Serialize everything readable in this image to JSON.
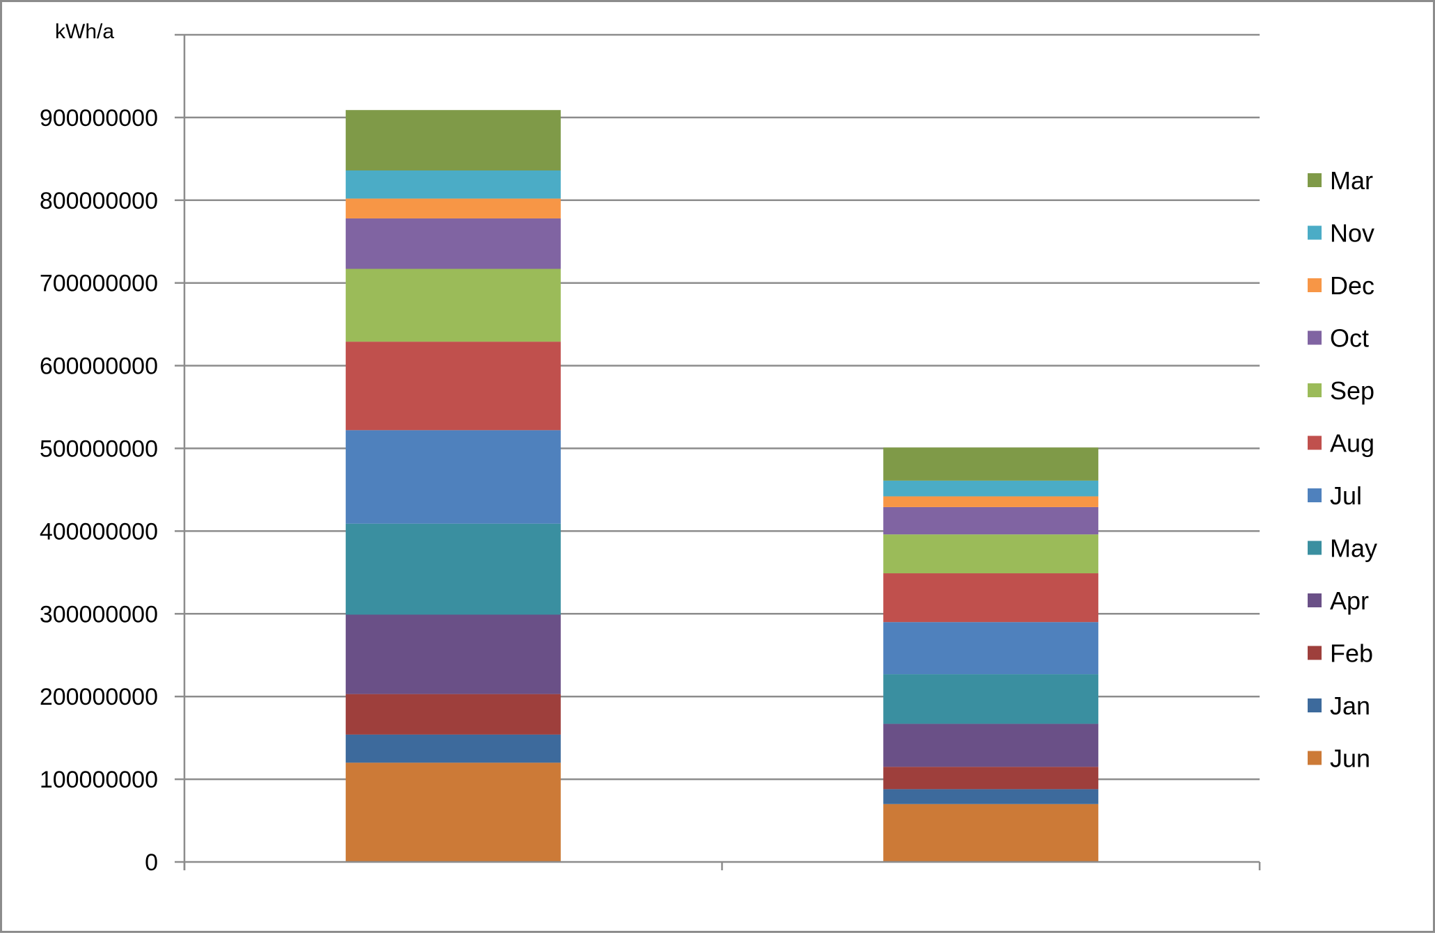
{
  "chart_data": {
    "type": "bar",
    "stacked": true,
    "title": "",
    "xlabel": "",
    "ylabel": "kWh/a",
    "categories": [
      "",
      ""
    ],
    "ylim": [
      0,
      1000000000
    ],
    "yticks": [
      0,
      100000000,
      200000000,
      300000000,
      400000000,
      500000000,
      600000000,
      700000000,
      800000000,
      900000000
    ],
    "ytick_labels": [
      "0",
      "100000000",
      "200000000",
      "300000000",
      "400000000",
      "500000000",
      "600000000",
      "700000000",
      "800000000",
      "900000000"
    ],
    "grid": true,
    "legend_position": "right",
    "series": [
      {
        "name": "Jun",
        "color": "#CC7A37",
        "values": [
          120000000,
          70000000
        ]
      },
      {
        "name": "Jan",
        "color": "#3D6A9C",
        "values": [
          34000000,
          18000000
        ]
      },
      {
        "name": "Feb",
        "color": "#9E3F3C",
        "values": [
          49000000,
          27000000
        ]
      },
      {
        "name": "Apr",
        "color": "#6A5087",
        "values": [
          96000000,
          52000000
        ]
      },
      {
        "name": "May",
        "color": "#3A8FA0",
        "values": [
          110000000,
          60000000
        ]
      },
      {
        "name": "Jul",
        "color": "#4F81BD",
        "values": [
          113000000,
          63000000
        ]
      },
      {
        "name": "Aug",
        "color": "#C0504D",
        "values": [
          107000000,
          59000000
        ]
      },
      {
        "name": "Sep",
        "color": "#9BBB59",
        "values": [
          88000000,
          47000000
        ]
      },
      {
        "name": "Oct",
        "color": "#8064A2",
        "values": [
          61000000,
          33000000
        ]
      },
      {
        "name": "Dec",
        "color": "#F79646",
        "values": [
          24000000,
          13000000
        ]
      },
      {
        "name": "Nov",
        "color": "#4BACC6",
        "values": [
          34000000,
          19000000
        ]
      },
      {
        "name": "Mar",
        "color": "#7F9A48",
        "values": [
          73000000,
          40000000
        ]
      }
    ]
  }
}
